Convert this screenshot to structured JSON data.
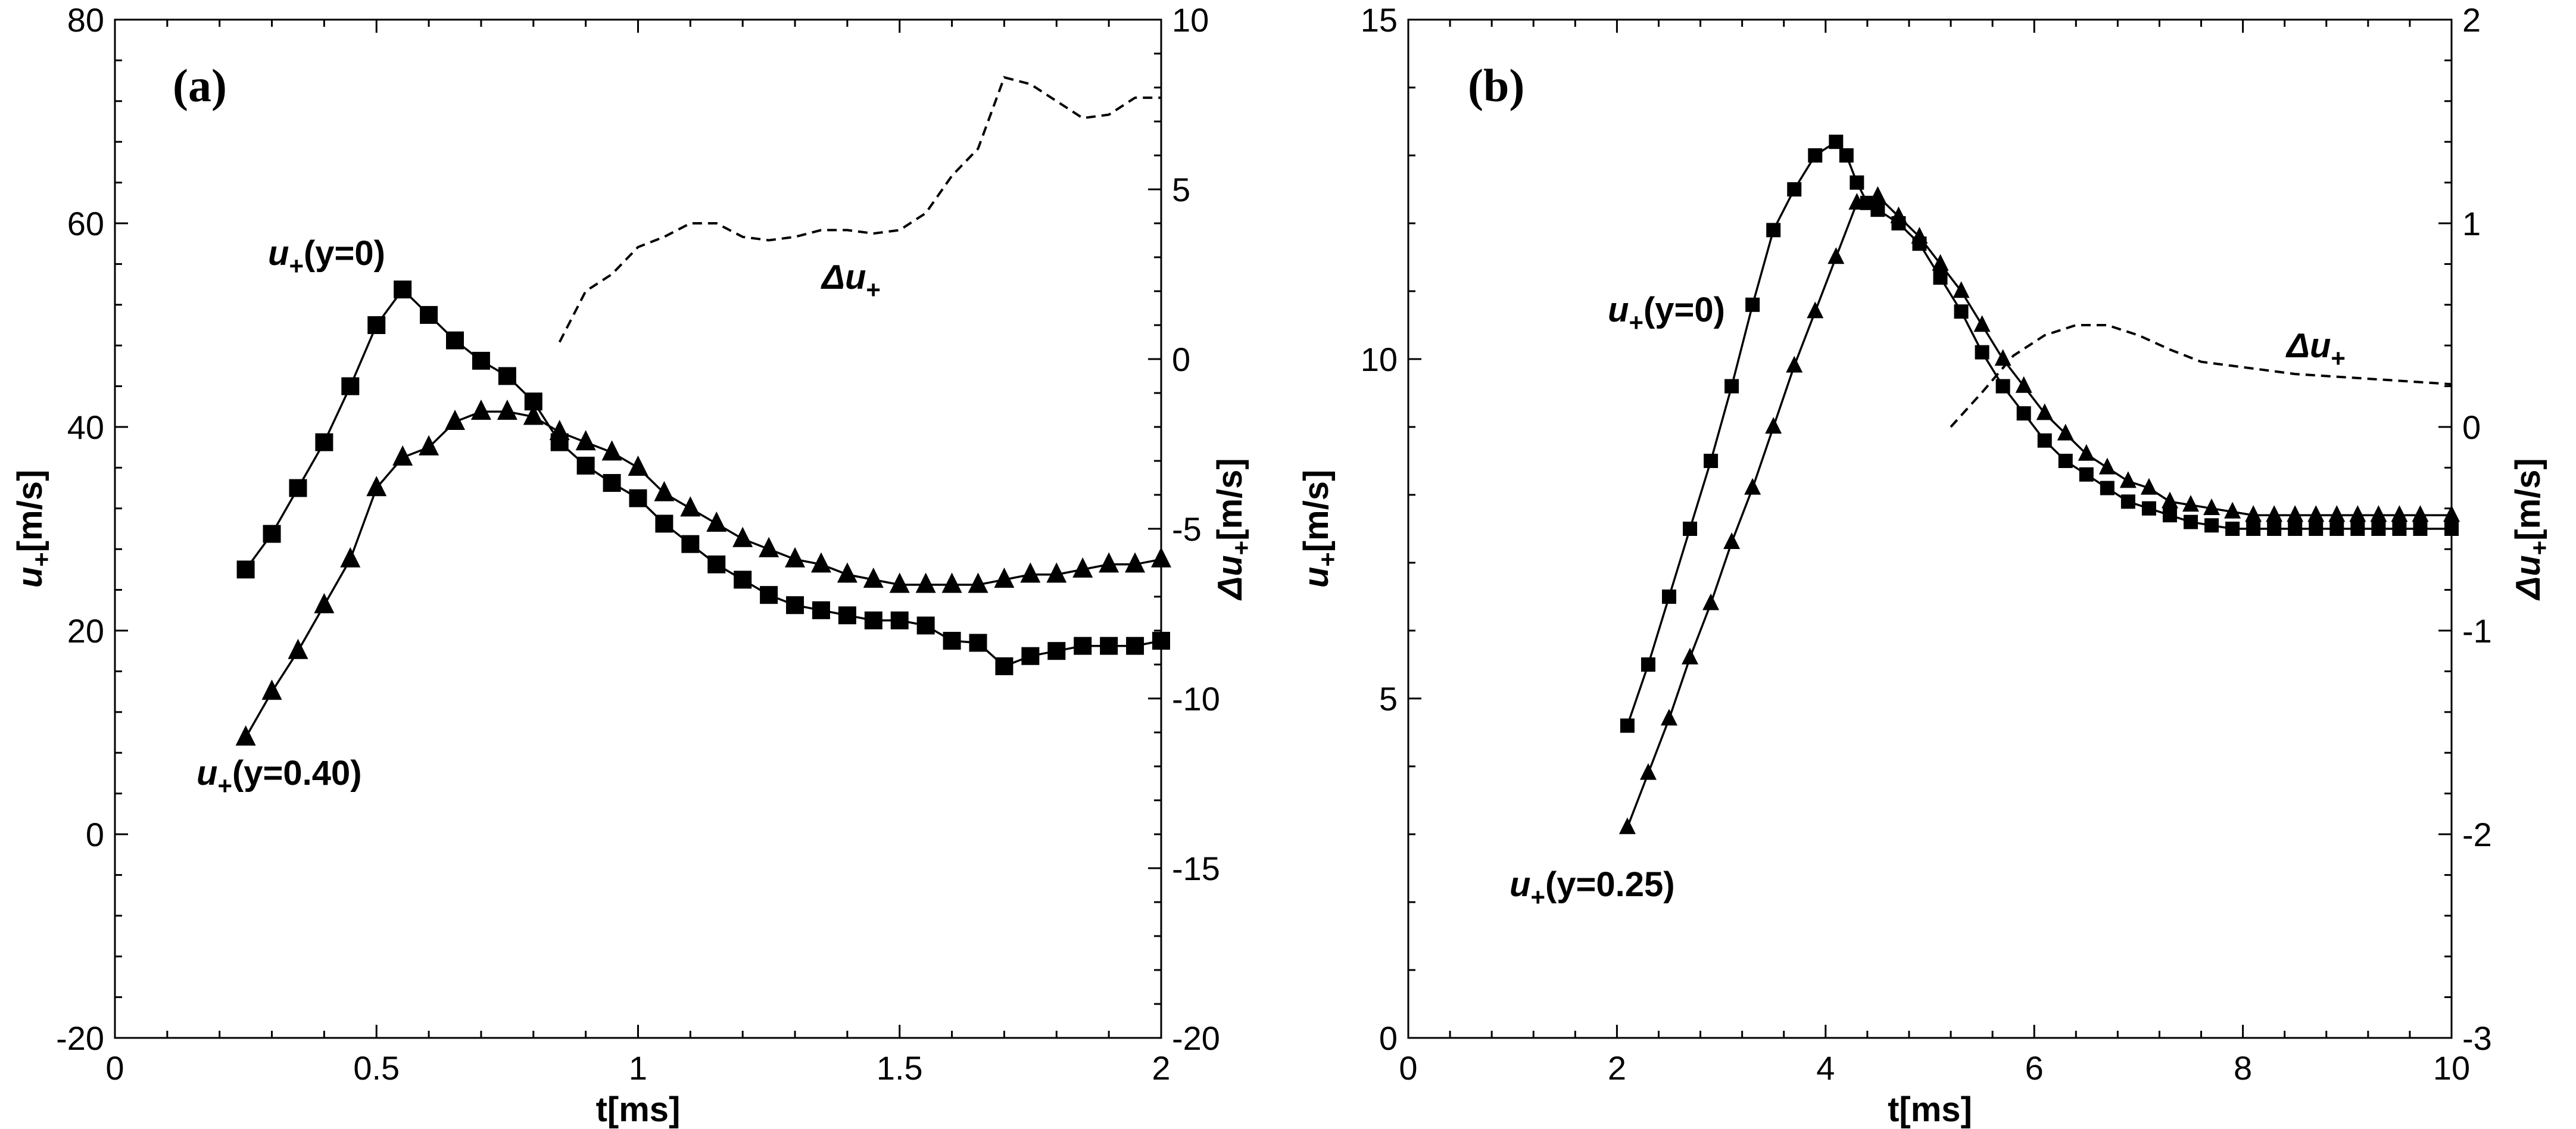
{
  "chart_data": [
    {
      "type": "line",
      "panel_label": "(a)",
      "xlabel": "t[ms]",
      "ylabel": "u+[m/s]",
      "y2label": "Δu+[m/s]",
      "xlim": [
        0,
        2
      ],
      "ylim": [
        -20,
        80
      ],
      "y2lim": [
        -20,
        10
      ],
      "x_ticks": [
        "0",
        "0.5",
        "1",
        "1.5",
        "2"
      ],
      "y_ticks": [
        "-20",
        "0",
        "20",
        "40",
        "60",
        "80"
      ],
      "y2_ticks": [
        "-20",
        "-15",
        "-10",
        "-5",
        "0",
        "5",
        "10"
      ],
      "series": [
        {
          "name": "u+(y=0)",
          "label_main": "u",
          "label_sub": "+",
          "label_rest": "(y=0)",
          "marker": "square",
          "axis": "left",
          "x": [
            0.25,
            0.3,
            0.35,
            0.4,
            0.45,
            0.5,
            0.55,
            0.6,
            0.65,
            0.7,
            0.75,
            0.8,
            0.85,
            0.9,
            0.95,
            1.0,
            1.05,
            1.1,
            1.15,
            1.2,
            1.25,
            1.3,
            1.35,
            1.4,
            1.45,
            1.5,
            1.55,
            1.6,
            1.65,
            1.7,
            1.75,
            1.8,
            1.85,
            1.9,
            1.95,
            2.0
          ],
          "y": [
            26,
            29.5,
            34,
            38.5,
            44,
            50,
            53.5,
            51,
            48.5,
            46.5,
            45,
            42.5,
            38.5,
            36.2,
            34.5,
            33,
            30.5,
            28.5,
            26.5,
            25,
            23.5,
            22.5,
            22,
            21.5,
            21,
            21,
            20.5,
            19,
            18.8,
            16.5,
            17.5,
            18,
            18.5,
            18.5,
            18.5,
            19
          ]
        },
        {
          "name": "u+(y=0.40)",
          "label_main": "u",
          "label_sub": "+",
          "label_rest": "(y=0.40)",
          "marker": "triangle",
          "axis": "left",
          "x": [
            0.25,
            0.3,
            0.35,
            0.4,
            0.45,
            0.5,
            0.55,
            0.6,
            0.65,
            0.7,
            0.75,
            0.8,
            0.85,
            0.9,
            0.95,
            1.0,
            1.05,
            1.1,
            1.15,
            1.2,
            1.25,
            1.3,
            1.35,
            1.4,
            1.45,
            1.5,
            1.55,
            1.6,
            1.65,
            1.7,
            1.75,
            1.8,
            1.85,
            1.9,
            1.95,
            2.0
          ],
          "y": [
            9.5,
            14,
            18,
            22.5,
            27,
            34,
            37,
            38,
            40.5,
            41.5,
            41.5,
            41,
            39.5,
            38.5,
            37.5,
            36,
            33.5,
            32,
            30.5,
            29,
            28,
            27,
            26.5,
            25.5,
            25,
            24.5,
            24.5,
            24.5,
            24.5,
            25,
            25.5,
            25.5,
            26,
            26.5,
            26.5,
            27
          ]
        },
        {
          "name": "Δu+",
          "label_main": "Δu",
          "label_sub": "+",
          "label_rest": "",
          "marker": "none",
          "style": "dashed",
          "axis": "right",
          "x": [
            0.85,
            0.9,
            0.95,
            1.0,
            1.05,
            1.1,
            1.15,
            1.2,
            1.25,
            1.3,
            1.35,
            1.4,
            1.45,
            1.5,
            1.55,
            1.6,
            1.65,
            1.7,
            1.75,
            1.8,
            1.85,
            1.9,
            1.95,
            2.0
          ],
          "y": [
            0.5,
            2,
            2.5,
            3.3,
            3.6,
            4,
            4,
            3.6,
            3.5,
            3.6,
            3.8,
            3.8,
            3.7,
            3.8,
            4.3,
            5.4,
            6.2,
            8.3,
            8.1,
            7.6,
            7.1,
            7.2,
            7.7,
            7.7
          ]
        }
      ]
    },
    {
      "type": "line",
      "panel_label": "(b)",
      "xlabel": "t[ms]",
      "ylabel": "u+[m/s]",
      "y2label": "Δu+[m/s]",
      "xlim": [
        0,
        10
      ],
      "ylim": [
        0,
        15
      ],
      "y2lim": [
        -3,
        2
      ],
      "x_ticks": [
        "0",
        "2",
        "4",
        "6",
        "8",
        "10"
      ],
      "y_ticks": [
        "0",
        "5",
        "10",
        "15"
      ],
      "y2_ticks": [
        "-3",
        "-2",
        "-1",
        "0",
        "1",
        "2"
      ],
      "series": [
        {
          "name": "u+(y=0)",
          "label_main": "u",
          "label_sub": "+",
          "label_rest": "(y=0)",
          "marker": "square",
          "axis": "left",
          "x": [
            2.1,
            2.3,
            2.5,
            2.7,
            2.9,
            3.1,
            3.3,
            3.5,
            3.7,
            3.9,
            4.1,
            4.2,
            4.3,
            4.4,
            4.5,
            4.7,
            4.9,
            5.1,
            5.3,
            5.5,
            5.7,
            5.9,
            6.1,
            6.3,
            6.5,
            6.7,
            6.9,
            7.1,
            7.3,
            7.5,
            7.7,
            7.9,
            8.1,
            8.3,
            8.5,
            8.7,
            8.9,
            9.1,
            9.3,
            9.5,
            9.7,
            10.0
          ],
          "y": [
            4.6,
            5.5,
            6.5,
            7.5,
            8.5,
            9.6,
            10.8,
            11.9,
            12.5,
            13.0,
            13.2,
            13.0,
            12.6,
            12.3,
            12.2,
            12.0,
            11.7,
            11.2,
            10.7,
            10.1,
            9.6,
            9.2,
            8.8,
            8.5,
            8.3,
            8.1,
            7.9,
            7.8,
            7.7,
            7.6,
            7.55,
            7.5,
            7.5,
            7.5,
            7.5,
            7.5,
            7.5,
            7.5,
            7.5,
            7.5,
            7.5,
            7.5
          ]
        },
        {
          "name": "u+(y=0.25)",
          "label_main": "u",
          "label_sub": "+",
          "label_rest": "(y=0.25)",
          "marker": "triangle",
          "axis": "left",
          "x": [
            2.1,
            2.3,
            2.5,
            2.7,
            2.9,
            3.1,
            3.3,
            3.5,
            3.7,
            3.9,
            4.1,
            4.3,
            4.5,
            4.7,
            4.9,
            5.1,
            5.3,
            5.5,
            5.7,
            5.9,
            6.1,
            6.3,
            6.5,
            6.7,
            6.9,
            7.1,
            7.3,
            7.5,
            7.7,
            7.9,
            8.1,
            8.3,
            8.5,
            8.7,
            8.9,
            9.1,
            9.3,
            9.5,
            9.7,
            10.0
          ],
          "y": [
            3.1,
            3.9,
            4.7,
            5.6,
            6.4,
            7.3,
            8.1,
            9.0,
            9.9,
            10.7,
            11.5,
            12.3,
            12.4,
            12.1,
            11.8,
            11.4,
            11.0,
            10.5,
            10.0,
            9.6,
            9.2,
            8.9,
            8.6,
            8.4,
            8.2,
            8.1,
            7.9,
            7.85,
            7.8,
            7.75,
            7.7,
            7.7,
            7.7,
            7.7,
            7.7,
            7.7,
            7.7,
            7.7,
            7.7,
            7.7
          ]
        },
        {
          "name": "Δu+",
          "label_main": "Δu",
          "label_sub": "+",
          "label_rest": "",
          "marker": "none",
          "style": "dashed",
          "axis": "right",
          "x": [
            5.2,
            5.5,
            5.8,
            6.1,
            6.4,
            6.7,
            7.0,
            7.3,
            7.6,
            7.9,
            8.2,
            8.5,
            8.8,
            9.1,
            9.4,
            9.7,
            10.0
          ],
          "y": [
            0.0,
            0.17,
            0.35,
            0.45,
            0.5,
            0.5,
            0.45,
            0.38,
            0.32,
            0.3,
            0.28,
            0.26,
            0.25,
            0.24,
            0.23,
            0.22,
            0.21
          ]
        }
      ]
    }
  ]
}
